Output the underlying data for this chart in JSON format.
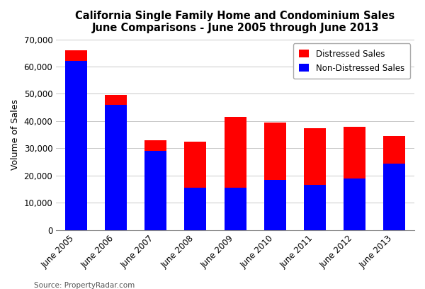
{
  "title_line1": "California Single Family Home and Condominium Sales",
  "title_line2": "June Comparisons - June 2005 through June 2013",
  "ylabel": "Volume of Sales",
  "source": "Source: PropertyRadar.com",
  "categories": [
    "June 2005",
    "June 2006",
    "June 2007",
    "June 2008",
    "June 2009",
    "June 2010",
    "June 2011",
    "June 2012",
    "June 2013"
  ],
  "non_distressed": [
    62000,
    46000,
    29000,
    15500,
    15500,
    18500,
    16500,
    19000,
    24500
  ],
  "distressed": [
    4000,
    3500,
    4000,
    17000,
    26000,
    21000,
    21000,
    19000,
    10000
  ],
  "color_non_distressed": "#0000FF",
  "color_distressed": "#FF0000",
  "legend_label_distressed": "Distressed Sales",
  "legend_label_non_distressed": "Non-Distressed Sales",
  "ylim": [
    0,
    70000
  ],
  "ytick_step": 10000,
  "background_color": "#FFFFFF",
  "grid_color": "#C8C8C8",
  "title_fontsize": 10.5,
  "axis_label_fontsize": 9,
  "tick_fontsize": 8.5,
  "legend_fontsize": 8.5,
  "source_fontsize": 7.5,
  "bar_width": 0.55
}
